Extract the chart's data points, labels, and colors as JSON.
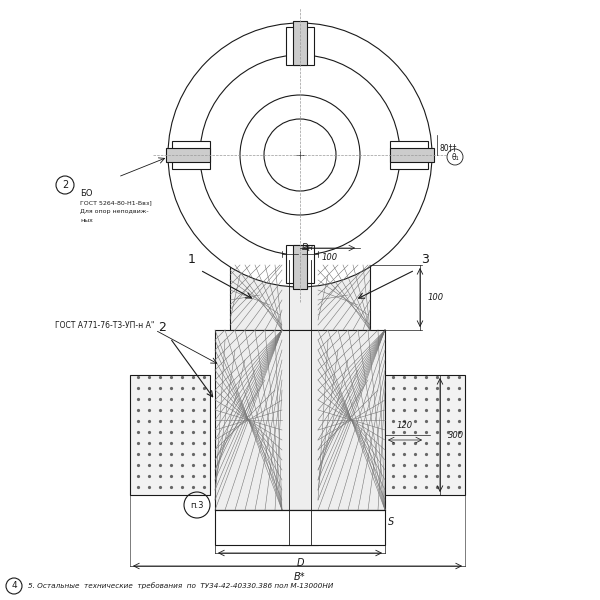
{
  "bg_color": "#ffffff",
  "line_color": "#1a1a1a",
  "label1": "1",
  "label2": "2",
  "label3": "3",
  "label_n3": "п.3",
  "gost_text": "ГОСТ А771-76-Т3-УП-н А\"",
  "dim_100": "100",
  "dim_300": "300",
  "dim_120": "120",
  "dim_S": "S",
  "dim_D": "D",
  "dim_B": "B*",
  "dim_Dn": "Dн",
  "bottom_text": "5. Остальные  технические  требования  по  ТУ34-42-40330.386 пол М-13000НИ",
  "gost2_line1": "БО",
  "gost2_line2": "ГОСТ 5264-80-Н1-Бвз]",
  "gost2_line3": "Для опор неподвиж-",
  "gost2_line4": "ных"
}
